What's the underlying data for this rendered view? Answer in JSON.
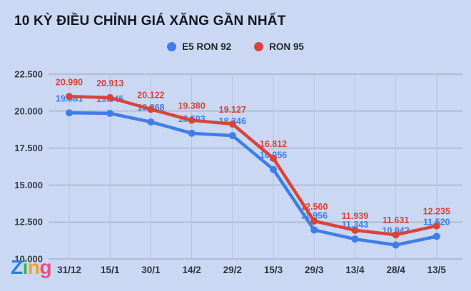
{
  "title": "10 KỲ ĐIỀU CHỈNH GIÁ XĂNG GẦN NHẤT",
  "legend": [
    {
      "label": "E5 RON 92",
      "color": "#3f7ee8"
    },
    {
      "label": "RON 95",
      "color": "#d9443a"
    }
  ],
  "chart_data": {
    "type": "line",
    "title": "10 KỲ ĐIỀU CHỈNH GIÁ XĂNG GẦN NHẤT",
    "categories": [
      "31/12",
      "15/1",
      "30/1",
      "14/2",
      "29/2",
      "15/3",
      "29/3",
      "13/4",
      "28/4",
      "13/5"
    ],
    "series": [
      {
        "name": "E5 RON 92",
        "color": "#3f7ee8",
        "values": [
          19881,
          19845,
          19268,
          18503,
          18346,
          16056,
          11956,
          11343,
          10942,
          11520
        ]
      },
      {
        "name": "RON 95",
        "color": "#d9443a",
        "values": [
          20990,
          20913,
          20122,
          19380,
          19127,
          16812,
          12560,
          11939,
          11631,
          12235
        ]
      }
    ],
    "y_ticks": [
      22500,
      20000,
      17500,
      15000,
      12500,
      10000
    ],
    "y_tick_labels": [
      "22.500",
      "20.000",
      "17.500",
      "15.000",
      "12.500",
      "10.000"
    ],
    "ylim": [
      10000,
      22500
    ],
    "grid": true,
    "legend_position": "top",
    "value_label_format": "thousands-dot",
    "colors": {
      "background": "#cad8f4",
      "h_gridline": "#99a1b0",
      "v_gridline": "#b6c2e0",
      "axis_text": "#383d47"
    }
  },
  "logo": {
    "text": "Zing",
    "letters": [
      {
        "char": "Z",
        "color": "#2b7de0"
      },
      {
        "char": "i",
        "color": "#3fae4f"
      },
      {
        "char": "n",
        "color": "#f6a21d"
      },
      {
        "char": "g",
        "color": "#ee4d8b"
      }
    ]
  }
}
